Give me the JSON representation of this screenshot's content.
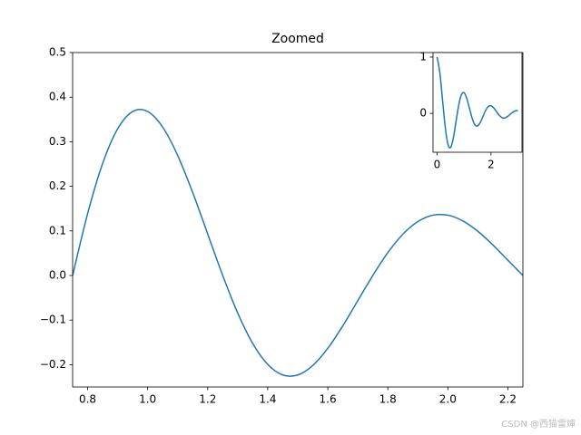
{
  "chart_data": [
    {
      "type": "line",
      "title": "Zoomed",
      "x": [
        0.75,
        0.8,
        0.85,
        0.9,
        0.95,
        1.0,
        1.05,
        1.1,
        1.15,
        1.2,
        1.25,
        1.3,
        1.35,
        1.4,
        1.45,
        1.5,
        1.55,
        1.6,
        1.65,
        1.7,
        1.75,
        1.8,
        1.85,
        1.9,
        1.95,
        2.0,
        2.05,
        2.1,
        2.15,
        2.2,
        2.25
      ],
      "series": [
        {
          "color": "#1f77b4",
          "values": [
            0,
            0.1388,
            0.2512,
            0.3289,
            0.3678,
            0.3679,
            0.3328,
            0.2693,
            0.1861,
            0.0931,
            0,
            -0.0842,
            -0.1524,
            -0.1995,
            -0.2231,
            -0.2231,
            -0.2018,
            -0.1633,
            -0.1129,
            -0.0565,
            0,
            0.0511,
            0.0924,
            0.121,
            0.1353,
            0.1353,
            0.1224,
            0.0991,
            0.0685,
            0.0342,
            0
          ]
        }
      ],
      "xlim": [
        0.75,
        2.25
      ],
      "xticks": [
        {
          "value": 0.8,
          "label": "0.8"
        },
        {
          "value": 1.0,
          "label": "1.0"
        },
        {
          "value": 1.2,
          "label": "1.2"
        },
        {
          "value": 1.4,
          "label": "1.4"
        },
        {
          "value": 1.6,
          "label": "1.6"
        },
        {
          "value": 1.8,
          "label": "1.8"
        },
        {
          "value": 2.0,
          "label": "2.0"
        },
        {
          "value": 2.2,
          "label": "2.2"
        }
      ],
      "ylim": [
        -0.25,
        0.5
      ],
      "yticks": [
        {
          "value": -0.2,
          "label": "−0.2"
        },
        {
          "value": -0.1,
          "label": "−0.1"
        },
        {
          "value": 0,
          "label": "0.0"
        },
        {
          "value": 0.1,
          "label": "0.1"
        },
        {
          "value": 0.2,
          "label": "0.2"
        },
        {
          "value": 0.3,
          "label": "0.3"
        },
        {
          "value": 0.4,
          "label": "0.4"
        },
        {
          "value": 0.5,
          "label": "0.5"
        }
      ]
    },
    {
      "type": "line",
      "x": [
        0,
        0.1,
        0.2,
        0.3,
        0.4,
        0.5,
        0.6,
        0.7,
        0.8,
        0.9,
        1.0,
        1.1,
        1.2,
        1.3,
        1.4,
        1.5,
        1.6,
        1.7,
        1.8,
        1.9,
        2.0,
        2.1,
        2.2,
        2.3,
        2.4,
        2.5,
        2.6,
        2.7,
        2.8,
        2.9,
        3.0
      ],
      "series": [
        {
          "color": "#1f77b4",
          "values": [
            1,
            0.732,
            0.253,
            -0.2289,
            -0.5423,
            -0.6065,
            -0.444,
            -0.1534,
            0.1388,
            0.3289,
            0.3679,
            0.2693,
            0.0931,
            -0.0842,
            -0.1995,
            -0.2231,
            -0.1633,
            -0.0565,
            0.0511,
            0.121,
            0.1353,
            0.0991,
            0.0342,
            -0.031,
            -0.0734,
            -0.0821,
            -0.0601,
            -0.0208,
            0.0188,
            0.0445,
            0.0498
          ]
        }
      ],
      "xlim": [
        -0.15,
        3.15
      ],
      "xticks": [
        0,
        2
      ],
      "ylim": [
        -0.69,
        1.08
      ],
      "yticks": [
        0,
        1
      ]
    }
  ],
  "watermark": "CSDN @西猫雷婶"
}
